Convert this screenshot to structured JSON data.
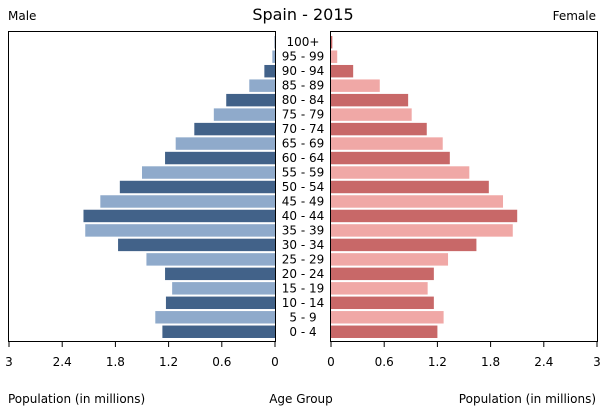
{
  "chart_data": {
    "type": "bar",
    "orientation": "horizontal-population-pyramid",
    "title": "Spain - 2015",
    "left_label": "Male",
    "right_label": "Female",
    "xlabel_left": "Population (in millions)",
    "xlabel_center": "Age Group",
    "xlabel_right": "Population (in millions)",
    "xlim": [
      0,
      3
    ],
    "x_ticks": [
      "3",
      "2.4",
      "1.8",
      "1.2",
      "0.6",
      "0",
      "0",
      "0.6",
      "1.2",
      "1.8",
      "2.4",
      "3"
    ],
    "categories": [
      "100+",
      "95 - 99",
      "90 - 94",
      "85 - 89",
      "80 - 84",
      "75 - 79",
      "70 - 74",
      "65 - 69",
      "60 - 64",
      "55 - 59",
      "50 - 54",
      "45 - 49",
      "40 - 44",
      "35 - 39",
      "30 - 34",
      "25 - 29",
      "20 - 24",
      "15 - 19",
      "10 - 14",
      "5 - 9",
      "0 - 4"
    ],
    "series": [
      {
        "name": "Male",
        "colors": [
          "#426289",
          "#8faacb"
        ],
        "values": [
          0.004,
          0.03,
          0.12,
          0.29,
          0.55,
          0.69,
          0.91,
          1.12,
          1.24,
          1.5,
          1.75,
          1.97,
          2.16,
          2.14,
          1.77,
          1.45,
          1.24,
          1.16,
          1.23,
          1.35,
          1.27
        ]
      },
      {
        "name": "Female",
        "colors": [
          "#c86868",
          "#f0a8a6"
        ],
        "values": [
          0.015,
          0.07,
          0.25,
          0.55,
          0.87,
          0.91,
          1.08,
          1.26,
          1.34,
          1.56,
          1.78,
          1.94,
          2.1,
          2.05,
          1.64,
          1.32,
          1.16,
          1.09,
          1.16,
          1.27,
          1.2
        ]
      }
    ]
  }
}
